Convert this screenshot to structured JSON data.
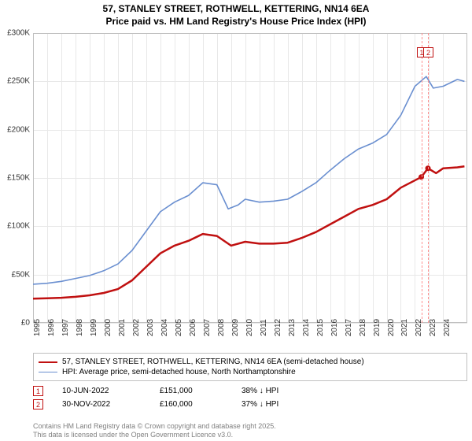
{
  "title_line1": "57, STANLEY STREET, ROTHWELL, KETTERING, NN14 6EA",
  "title_line2": "Price paid vs. HM Land Registry's House Price Index (HPI)",
  "chart": {
    "type": "line",
    "x_range": [
      1995,
      2025.7
    ],
    "y_range": [
      0,
      300000
    ],
    "y_ticks": [
      0,
      50000,
      100000,
      150000,
      200000,
      250000,
      300000
    ],
    "y_tick_labels": [
      "£0",
      "£50K",
      "£100K",
      "£150K",
      "£200K",
      "£250K",
      "£300K"
    ],
    "x_ticks": [
      1995,
      1996,
      1997,
      1998,
      1999,
      2000,
      2001,
      2002,
      2003,
      2004,
      2005,
      2006,
      2007,
      2008,
      2009,
      2010,
      2011,
      2012,
      2013,
      2014,
      2015,
      2016,
      2017,
      2018,
      2019,
      2020,
      2021,
      2022,
      2023,
      2024
    ],
    "grid_color": "#e8e8e8",
    "border_color": "#c0c0c0",
    "background_color": "#ffffff",
    "tick_fontsize": 10,
    "title_fontsize": 12,
    "series": [
      {
        "name": "property",
        "label": "57, STANLEY STREET, ROTHWELL, KETTERING, NN14 6EA (semi-detached house)",
        "color": "#c01010",
        "line_width": 2.5,
        "points": [
          [
            1995,
            25000
          ],
          [
            1996,
            25500
          ],
          [
            1997,
            26000
          ],
          [
            1998,
            27000
          ],
          [
            1999,
            28500
          ],
          [
            2000,
            31000
          ],
          [
            2001,
            35000
          ],
          [
            2002,
            44000
          ],
          [
            2003,
            58000
          ],
          [
            2004,
            72000
          ],
          [
            2005,
            80000
          ],
          [
            2006,
            85000
          ],
          [
            2007,
            92000
          ],
          [
            2008,
            90000
          ],
          [
            2009,
            80000
          ],
          [
            2010,
            84000
          ],
          [
            2011,
            82000
          ],
          [
            2012,
            82000
          ],
          [
            2013,
            83000
          ],
          [
            2014,
            88000
          ],
          [
            2015,
            94000
          ],
          [
            2016,
            102000
          ],
          [
            2017,
            110000
          ],
          [
            2018,
            118000
          ],
          [
            2019,
            122000
          ],
          [
            2020,
            128000
          ],
          [
            2021,
            140000
          ],
          [
            2022.45,
            151000
          ],
          [
            2022.92,
            160000
          ],
          [
            2023.5,
            155000
          ],
          [
            2024,
            160000
          ],
          [
            2025,
            161000
          ],
          [
            2025.5,
            162000
          ]
        ]
      },
      {
        "name": "hpi",
        "label": "HPI: Average price, semi-detached house, North Northamptonshire",
        "color": "#6a8fd0",
        "line_width": 1.6,
        "points": [
          [
            1995,
            40000
          ],
          [
            1996,
            41000
          ],
          [
            1997,
            43000
          ],
          [
            1998,
            46000
          ],
          [
            1999,
            49000
          ],
          [
            2000,
            54000
          ],
          [
            2001,
            61000
          ],
          [
            2002,
            75000
          ],
          [
            2003,
            95000
          ],
          [
            2004,
            115000
          ],
          [
            2005,
            125000
          ],
          [
            2006,
            132000
          ],
          [
            2007,
            145000
          ],
          [
            2008,
            143000
          ],
          [
            2008.8,
            118000
          ],
          [
            2009.5,
            122000
          ],
          [
            2010,
            128000
          ],
          [
            2011,
            125000
          ],
          [
            2012,
            126000
          ],
          [
            2013,
            128000
          ],
          [
            2014,
            136000
          ],
          [
            2015,
            145000
          ],
          [
            2016,
            158000
          ],
          [
            2017,
            170000
          ],
          [
            2018,
            180000
          ],
          [
            2019,
            186000
          ],
          [
            2020,
            195000
          ],
          [
            2021,
            215000
          ],
          [
            2022,
            245000
          ],
          [
            2022.8,
            255000
          ],
          [
            2023.3,
            243000
          ],
          [
            2024,
            245000
          ],
          [
            2025,
            252000
          ],
          [
            2025.5,
            250000
          ]
        ]
      }
    ],
    "event_points": [
      {
        "series": "property",
        "x": 2022.45,
        "y": 151000,
        "color": "#c01010"
      },
      {
        "series": "property",
        "x": 2022.92,
        "y": 160000,
        "color": "#c01010"
      }
    ],
    "event_vlines": [
      {
        "x": 2022.45,
        "color": "#ff9090"
      },
      {
        "x": 2022.92,
        "color": "#ff9090"
      }
    ],
    "event_markers": [
      {
        "n": "1",
        "x": 2022.45,
        "top": 18,
        "color": "#c01010"
      },
      {
        "n": "2",
        "x": 2022.92,
        "top": 18,
        "color": "#c01010"
      }
    ]
  },
  "legend": {
    "border_color": "#c0c0c0",
    "rows": [
      {
        "color": "#c01010",
        "width": 2.5,
        "label": "57, STANLEY STREET, ROTHWELL, KETTERING, NN14 6EA (semi-detached house)"
      },
      {
        "color": "#6a8fd0",
        "width": 1.6,
        "label": "HPI: Average price, semi-detached house, North Northamptonshire"
      }
    ]
  },
  "events": [
    {
      "n": "1",
      "color": "#c01010",
      "date": "10-JUN-2022",
      "price": "£151,000",
      "pct": "38% ↓ HPI"
    },
    {
      "n": "2",
      "color": "#c01010",
      "date": "30-NOV-2022",
      "price": "£160,000",
      "pct": "37% ↓ HPI"
    }
  ],
  "footer_line1": "Contains HM Land Registry data © Crown copyright and database right 2025.",
  "footer_line2": "This data is licensed under the Open Government Licence v3.0."
}
